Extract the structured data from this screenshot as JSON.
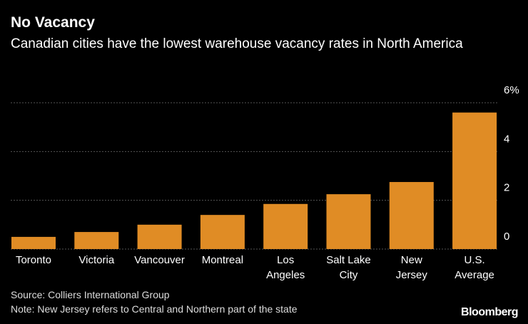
{
  "chart_data": {
    "type": "bar",
    "title": "No Vacancy",
    "subtitle": "Canadian cities have the lowest warehouse vacancy rates in North America",
    "categories": [
      "Toronto",
      "Victoria",
      "Vancouver",
      "Montreal",
      "Los\nAngeles",
      "Salt Lake\nCity",
      "New\nJersey",
      "U.S.\nAverage"
    ],
    "values": [
      0.5,
      0.7,
      1.0,
      1.4,
      1.85,
      2.25,
      2.75,
      5.6
    ],
    "color": "#e08c25",
    "ylim": [
      0,
      6
    ],
    "yticks": [
      0,
      2,
      4,
      {
        "value": 6,
        "label": "6%"
      }
    ],
    "grid": true,
    "source": "Source: Colliers International Group",
    "note": "Note: New Jersey refers to Central and Northern part of the state",
    "brand": "Bloomberg"
  }
}
